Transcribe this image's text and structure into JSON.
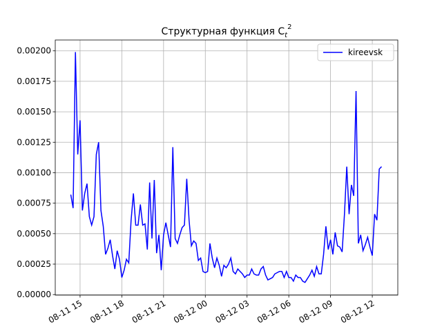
{
  "chart_data": {
    "type": "line",
    "title": "Структурная функция C",
    "title_sub": "t",
    "title_sup": "2",
    "x": [
      "08-11 14:20",
      "08-11 14:30",
      "08-11 14:40",
      "08-11 14:50",
      "08-11 15:00",
      "08-11 15:10",
      "08-11 15:20",
      "08-11 15:30",
      "08-11 15:40",
      "08-11 15:50",
      "08-11 16:00",
      "08-11 16:10",
      "08-11 16:20",
      "08-11 16:30",
      "08-11 16:40",
      "08-11 16:50",
      "08-11 17:00",
      "08-11 17:10",
      "08-11 17:20",
      "08-11 17:30",
      "08-11 17:40",
      "08-11 17:50",
      "08-11 18:00",
      "08-11 18:10",
      "08-11 18:20",
      "08-11 18:30",
      "08-11 18:40",
      "08-11 18:50",
      "08-11 19:00",
      "08-11 19:10",
      "08-11 19:20",
      "08-11 19:30",
      "08-11 19:40",
      "08-11 19:50",
      "08-11 20:00",
      "08-11 20:10",
      "08-11 20:20",
      "08-11 20:30",
      "08-11 20:40",
      "08-11 20:50",
      "08-11 21:00",
      "08-11 21:10",
      "08-11 21:20",
      "08-11 21:30",
      "08-11 21:40",
      "08-11 21:50",
      "08-11 22:00",
      "08-11 22:10",
      "08-11 22:20",
      "08-11 22:30",
      "08-11 22:40",
      "08-11 22:50",
      "08-11 23:00",
      "08-11 23:10",
      "08-11 23:20",
      "08-11 23:30",
      "08-11 23:40",
      "08-11 23:50",
      "08-12 00:00",
      "08-12 00:10",
      "08-12 00:20",
      "08-12 00:30",
      "08-12 00:40",
      "08-12 00:50",
      "08-12 01:00",
      "08-12 01:10",
      "08-12 01:20",
      "08-12 01:30",
      "08-12 01:40",
      "08-12 01:50",
      "08-12 02:00",
      "08-12 02:10",
      "08-12 02:20",
      "08-12 02:30",
      "08-12 02:40",
      "08-12 02:50",
      "08-12 03:00",
      "08-12 03:10",
      "08-12 03:20",
      "08-12 03:30",
      "08-12 03:40",
      "08-12 03:50",
      "08-12 04:00",
      "08-12 04:10",
      "08-12 04:20",
      "08-12 04:30",
      "08-12 04:40",
      "08-12 04:50",
      "08-12 05:00",
      "08-12 05:10",
      "08-12 05:20",
      "08-12 05:30",
      "08-12 05:40",
      "08-12 05:50",
      "08-12 06:00",
      "08-12 06:10",
      "08-12 06:20",
      "08-12 06:30",
      "08-12 06:40",
      "08-12 06:50",
      "08-12 07:00",
      "08-12 07:10",
      "08-12 07:20",
      "08-12 07:30",
      "08-12 07:40",
      "08-12 07:50",
      "08-12 08:00",
      "08-12 08:10",
      "08-12 08:20",
      "08-12 08:30",
      "08-12 08:40",
      "08-12 08:50",
      "08-12 09:00",
      "08-12 09:10",
      "08-12 09:20",
      "08-12 09:30",
      "08-12 09:40",
      "08-12 09:50",
      "08-12 10:00",
      "08-12 10:10",
      "08-12 10:20",
      "08-12 10:30",
      "08-12 10:40",
      "08-12 10:50",
      "08-12 11:00",
      "08-12 11:10",
      "08-12 11:20",
      "08-12 11:30",
      "08-12 11:40",
      "08-12 11:50",
      "08-12 12:00",
      "08-12 12:10",
      "08-12 12:20",
      "08-12 12:30",
      "08-12 12:40"
    ],
    "series": [
      {
        "name": "kireevsk",
        "color": "#0000ff",
        "values": [
          0.00082,
          0.00071,
          0.00199,
          0.00115,
          0.00143,
          0.00069,
          0.00083,
          0.00091,
          0.00064,
          0.00057,
          0.00064,
          0.00115,
          0.00125,
          0.00069,
          0.00056,
          0.00033,
          0.00038,
          0.00045,
          0.00032,
          0.00021,
          0.00036,
          0.00029,
          0.00014,
          0.0002,
          0.00029,
          0.00026,
          0.00061,
          0.00083,
          0.00057,
          0.00057,
          0.00074,
          0.00057,
          0.00058,
          0.00037,
          0.00092,
          0.00046,
          0.00094,
          0.00034,
          0.00049,
          0.0002,
          0.00049,
          0.00059,
          0.00049,
          0.00039,
          0.00121,
          0.00046,
          0.00042,
          0.00049,
          0.00055,
          0.00057,
          0.00095,
          0.00061,
          0.0004,
          0.00044,
          0.00042,
          0.00028,
          0.0003,
          0.00019,
          0.00018,
          0.00019,
          0.00042,
          0.0003,
          0.00022,
          0.0003,
          0.00024,
          0.00015,
          0.00024,
          0.00022,
          0.00025,
          0.0003,
          0.00019,
          0.00017,
          0.00021,
          0.00019,
          0.00017,
          0.00014,
          0.00016,
          0.00016,
          0.00021,
          0.00017,
          0.00016,
          0.00016,
          0.00021,
          0.00023,
          0.00016,
          0.00012,
          0.00013,
          0.00014,
          0.00017,
          0.00018,
          0.00019,
          0.00019,
          0.00014,
          0.00019,
          0.00014,
          0.00014,
          0.00011,
          0.00016,
          0.00014,
          0.00014,
          0.00011,
          0.0001,
          0.00013,
          0.00016,
          0.0002,
          0.00015,
          0.00023,
          0.00017,
          0.00017,
          0.00033,
          0.00056,
          0.00037,
          0.00045,
          0.00033,
          0.00051,
          0.0004,
          0.00039,
          0.00035,
          0.00066,
          0.00105,
          0.00066,
          0.0009,
          0.00081,
          0.00167,
          0.00042,
          0.00049,
          0.00036,
          0.00041,
          0.00047,
          0.00039,
          0.00032,
          0.00066,
          0.00061,
          0.00103,
          0.00105
        ]
      }
    ],
    "xlim": [
      "08-11 13:13",
      "08-12 13:50"
    ],
    "xticks": [
      "08-11 15",
      "08-11 18",
      "08-11 21",
      "08-12 00",
      "08-12 03",
      "08-12 06",
      "08-12 09",
      "08-12 12"
    ],
    "ylim": [
      -4.6e-06,
      0.002089
    ],
    "yticks": [
      {
        "value": 0,
        "label": "0.00000"
      },
      0.00025,
      {
        "value": 0.0005,
        "label": "0.00050"
      },
      0.00075,
      {
        "value": 0.001,
        "label": "0.00100"
      },
      0.00125,
      {
        "value": 0.0015,
        "label": "0.00150"
      },
      0.00175,
      {
        "value": 0.002,
        "label": "0.00200"
      }
    ],
    "grid": true,
    "legend": "upper right"
  }
}
